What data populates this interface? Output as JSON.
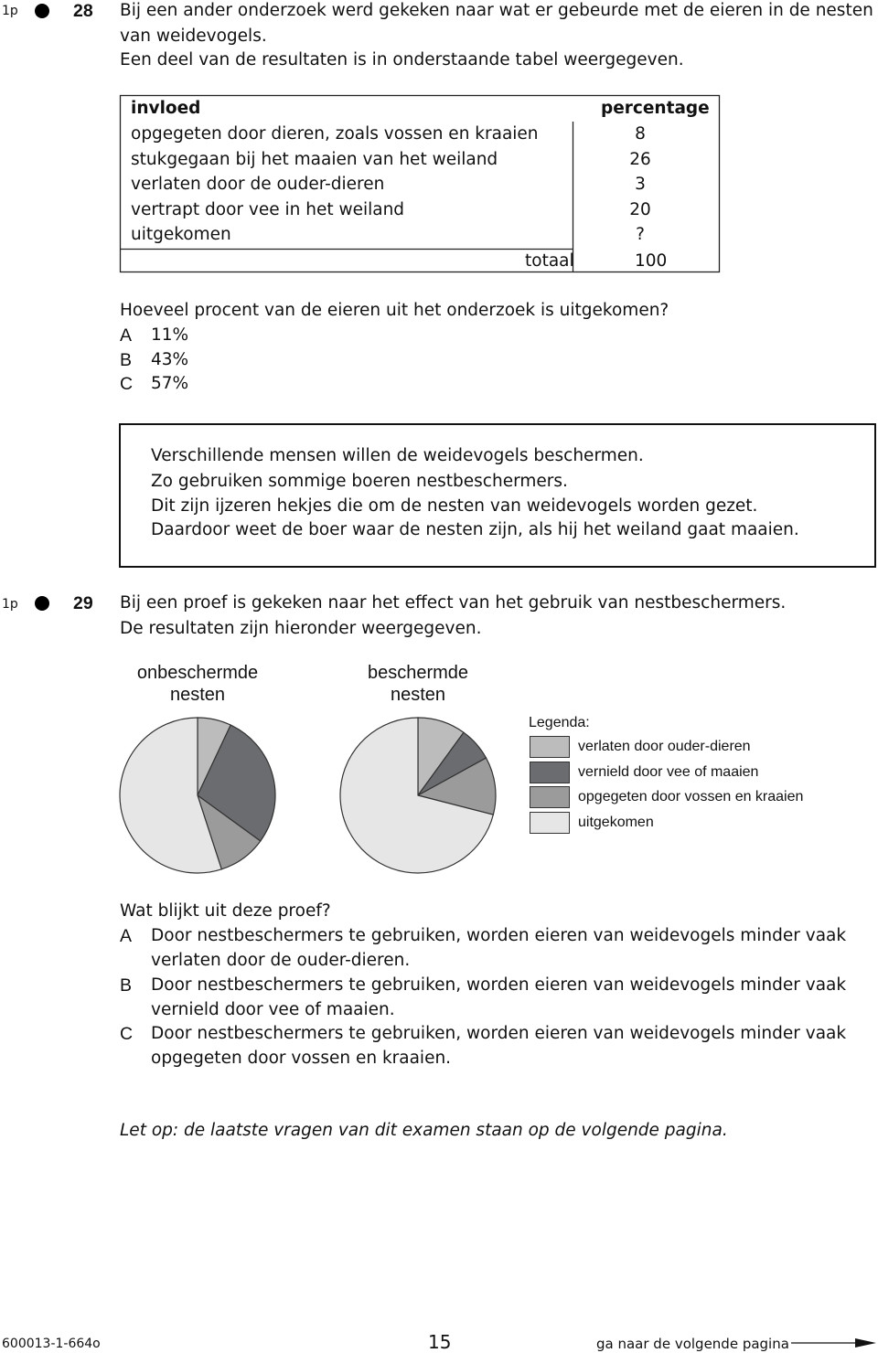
{
  "q28": {
    "points": "1p",
    "number": "28",
    "intro": [
      "Bij een ander onderzoek werd gekeken naar wat er gebeurde met de eieren in de nesten",
      "van weidevogels.",
      "Een deel van de resultaten is in onderstaande tabel weergegeven."
    ],
    "table": {
      "header": [
        "invloed",
        "percentage"
      ],
      "rows": [
        [
          "opgegeten door dieren, zoals vossen en kraaien",
          8
        ],
        [
          "stukgegaan bij het maaien van het weiland",
          26
        ],
        [
          "verlaten door de ouder-dieren",
          3
        ],
        [
          "vertrapt door vee in het weiland",
          20
        ],
        [
          "uitgekomen",
          "?"
        ]
      ],
      "total": [
        "totaal",
        100
      ]
    },
    "question": "Hoeveel procent van de eieren uit het onderzoek is uitgekomen?",
    "options": [
      {
        "letter": "A",
        "text": "11%"
      },
      {
        "letter": "B",
        "text": "43%"
      },
      {
        "letter": "C",
        "text": "57%"
      }
    ]
  },
  "info_box": [
    "Verschillende mensen willen de weidevogels beschermen.",
    "Zo gebruiken sommige boeren nestbeschermers.",
    "Dit zijn ijzeren hekjes die om de nesten van weidevogels worden gezet.",
    "Daardoor weet de boer waar de nesten zijn, als hij het weiland gaat maaien."
  ],
  "q29": {
    "points": "1p",
    "number": "29",
    "intro": [
      "Bij een proef is gekeken naar het effect van het gebruik van nestbeschermers.",
      "De resultaten zijn hieronder weergegeven."
    ],
    "question": "Wat blijkt uit deze proef?",
    "options": [
      {
        "letter": "A",
        "text": [
          "Door nestbeschermers te gebruiken, worden eieren van weidevogels minder vaak",
          "verlaten door de ouder-dieren."
        ]
      },
      {
        "letter": "B",
        "text": [
          "Door nestbeschermers te gebruiken, worden eieren van weidevogels minder vaak",
          "vernield door vee of maaien."
        ]
      },
      {
        "letter": "C",
        "text": [
          "Door nestbeschermers te gebruiken, worden eieren van weidevogels minder vaak",
          "opgegeten door vossen en kraaien."
        ]
      }
    ]
  },
  "chart_data": [
    {
      "type": "pie",
      "title": "onbeschermde nesten",
      "values": [
        7,
        28,
        10,
        55
      ]
    },
    {
      "type": "pie",
      "title": "beschermde nesten",
      "values": [
        10,
        7,
        12,
        71
      ]
    }
  ],
  "legend": {
    "title": "Legenda:",
    "categories": [
      "verlaten door ouder-dieren",
      "vernield door vee of maaien",
      "opgegeten door vossen en kraaien",
      "uitgekomen"
    ],
    "colors": [
      "#bcbcbc",
      "#6b6c6f",
      "#9b9b9b",
      "#e6e6e6"
    ]
  },
  "note": "Let op: de laatste vragen van dit examen staan op de volgende pagina.",
  "footer": {
    "code": "600013-1-664o",
    "page": 15,
    "next": "ga naar de volgende pagina"
  }
}
